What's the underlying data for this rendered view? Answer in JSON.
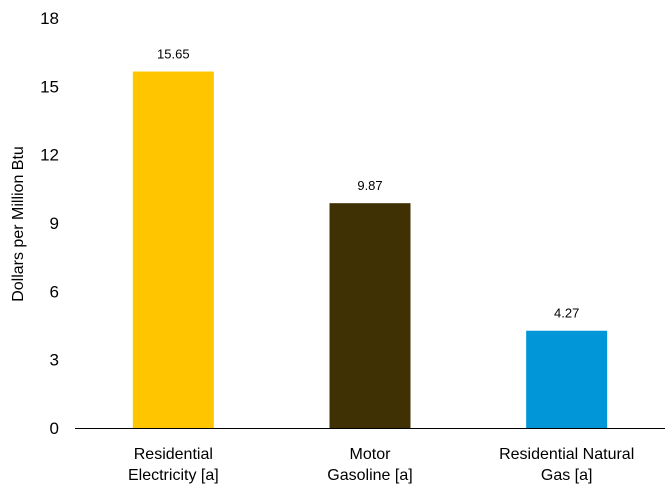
{
  "chart_data": {
    "type": "bar",
    "categories": [
      [
        "Residential",
        "Electricity [a]"
      ],
      [
        "Motor",
        "Gasoline [a]"
      ],
      [
        "Residential Natural",
        "Gas [a]"
      ]
    ],
    "values": [
      15.65,
      9.87,
      4.27
    ],
    "data_labels": [
      "15.65",
      "9.87",
      "4.27"
    ],
    "colors": [
      "#FFC600",
      "#3F3103",
      "#0096D7"
    ],
    "title": "",
    "xlabel": "",
    "ylabel": "Dollars per Million Btu",
    "ylim": [
      0,
      18
    ],
    "yticks": [
      0,
      3,
      6,
      9,
      12,
      15,
      18
    ],
    "grid": false,
    "axis_color": "#000000"
  }
}
